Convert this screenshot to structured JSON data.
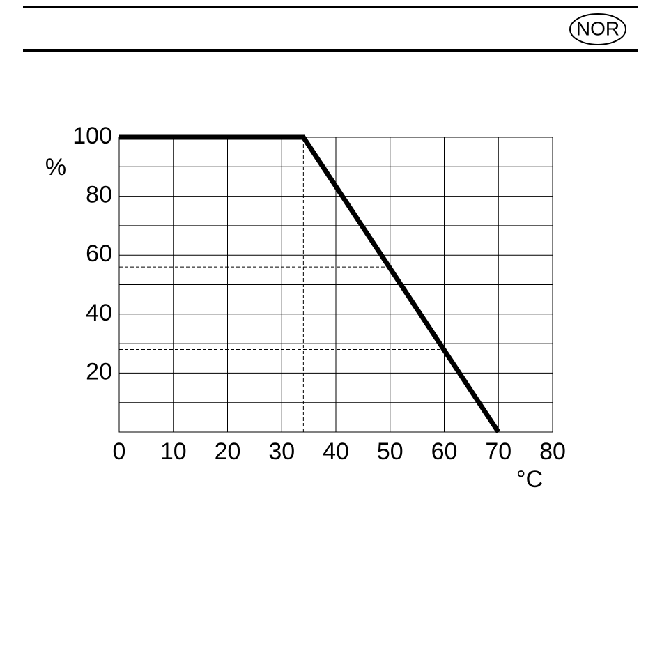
{
  "header": {
    "badge": "NOR"
  },
  "chart_data": {
    "type": "line",
    "x_label": "°C",
    "y_label": "%",
    "x": [
      0,
      34,
      70
    ],
    "series": [
      {
        "values": [
          100,
          100,
          0
        ],
        "color": "#000000"
      }
    ],
    "reference_lines": [
      {
        "x": [
          34,
          34
        ],
        "y": [
          0,
          100
        ]
      },
      {
        "x": [
          0,
          50
        ],
        "y": [
          56,
          56
        ]
      },
      {
        "x": [
          0,
          60
        ],
        "y": [
          28,
          28
        ]
      }
    ],
    "xlim": [
      0,
      80
    ],
    "ylim": [
      0,
      100
    ],
    "xticks": [
      0,
      10,
      20,
      30,
      40,
      50,
      60,
      70,
      80
    ],
    "yticks": [
      20,
      40,
      60,
      80,
      100
    ],
    "y_minor_ticks": [
      10,
      30,
      50,
      70,
      90
    ],
    "grid": true
  }
}
